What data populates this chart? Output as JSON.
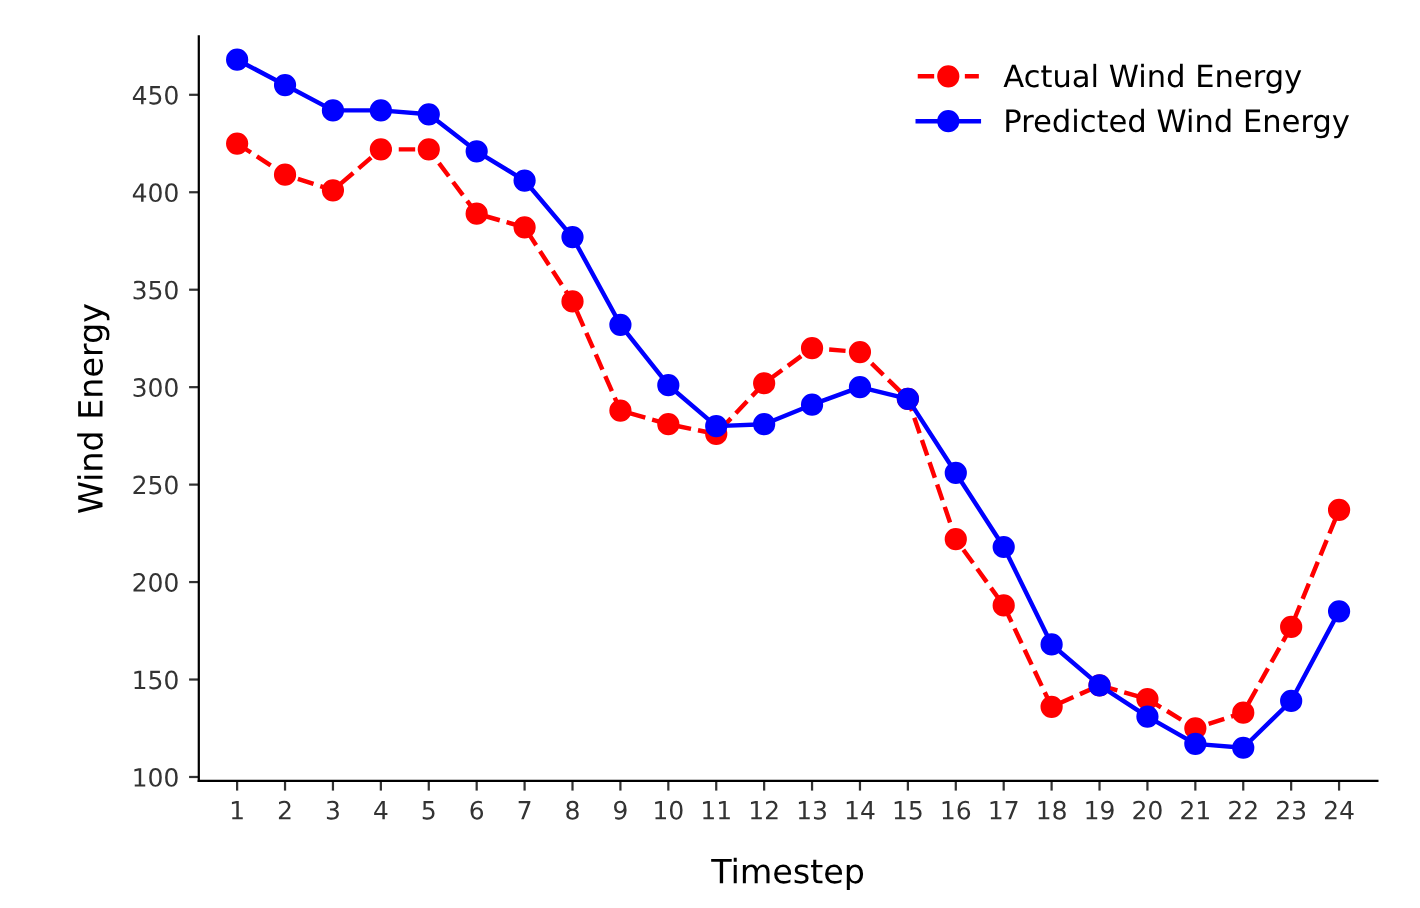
{
  "chart_data": {
    "type": "line",
    "xlabel": "Timestep",
    "ylabel": "Wind Energy",
    "x": [
      1,
      2,
      3,
      4,
      5,
      6,
      7,
      8,
      9,
      10,
      11,
      12,
      13,
      14,
      15,
      16,
      17,
      18,
      19,
      20,
      21,
      22,
      23,
      24
    ],
    "series": [
      {
        "name": "Actual Wind Energy",
        "color": "#ff0000",
        "line_style": "dashed",
        "marker": "circle",
        "values": [
          425,
          409,
          401,
          422,
          422,
          389,
          382,
          344,
          288,
          281,
          276,
          302,
          320,
          318,
          294,
          222,
          188,
          136,
          147,
          140,
          125,
          133,
          177,
          237
        ]
      },
      {
        "name": "Predicted Wind Energy",
        "color": "#0000ff",
        "line_style": "solid",
        "marker": "circle",
        "values": [
          468,
          455,
          442,
          442,
          440,
          421,
          406,
          377,
          332,
          301,
          280,
          281,
          291,
          300,
          294,
          256,
          218,
          168,
          147,
          131,
          117,
          115,
          139,
          185
        ]
      }
    ],
    "xlim": [
      0.2,
      24.8
    ],
    "ylim": [
      98,
      480
    ],
    "xticks": [
      1,
      2,
      3,
      4,
      5,
      6,
      7,
      8,
      9,
      10,
      11,
      12,
      13,
      14,
      15,
      16,
      17,
      18,
      19,
      20,
      21,
      22,
      23,
      24
    ],
    "yticks": [
      100,
      150,
      200,
      250,
      300,
      350,
      400,
      450
    ],
    "grid": false,
    "legend": "upper right"
  }
}
